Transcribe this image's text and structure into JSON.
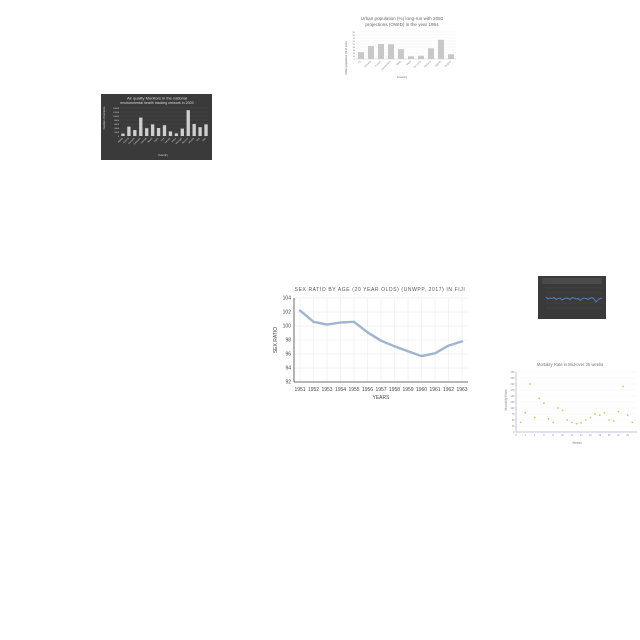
{
  "chart_data": [
    {
      "id": "urban",
      "type": "bar",
      "title_lines": [
        "Urban population (%) long-run with 2050",
        "projections (OWID) in the year 1954"
      ],
      "xlabel": "Country",
      "ylabel": "Urban population (% of total)",
      "categories": [
        "Fiji",
        "Grenada",
        "Kosovo",
        "Liechtenstein",
        "Malta",
        "Nepal",
        "Sri Lanka",
        "Tanzania",
        "Uganda",
        "Uruguay"
      ],
      "values": [
        23,
        43,
        50,
        49,
        33,
        9,
        11,
        36,
        64,
        16
      ],
      "ylim": [
        0,
        90
      ],
      "yticks": [
        0,
        10,
        20,
        30,
        40,
        50,
        60,
        70,
        80,
        90
      ],
      "colors": {
        "bar": "#c8c8c8",
        "text": "#666666"
      }
    },
    {
      "id": "air",
      "type": "bar",
      "title_lines": [
        "Air quality Monitors in the national",
        "environmental health tracking network in 2003"
      ],
      "xlabel": "Country",
      "ylabel": "Number of monitors",
      "categories": [
        "Alaska",
        "Arizona",
        "Colorado",
        "Delaware",
        "Georgia",
        "Hawaii",
        "Idaho",
        "Iowa",
        "Kansas",
        "Maine",
        "Michigan",
        "Missouri",
        "Nevada",
        "Ohio",
        "Utah"
      ],
      "values": [
        1200,
        4700,
        3000,
        9200,
        3900,
        5800,
        4000,
        5400,
        2300,
        1300,
        3700,
        12900,
        6000,
        4400,
        5800
      ],
      "ylim": [
        0,
        14000
      ],
      "yticks": [
        0,
        2000,
        4000,
        6000,
        8000,
        10000,
        12000,
        14000
      ],
      "colors": {
        "bg": "#3a3a3a",
        "bar": "#cfcfcf",
        "text": "#dddddd"
      }
    },
    {
      "id": "sex",
      "type": "line",
      "title": "SEX RATIO BY AGE (20 YEAR OLDS) (UNWPP, 2017) IN FIJI",
      "xlabel": "YEARS",
      "ylabel": "SEX RATIO",
      "x": [
        1951,
        1952,
        1953,
        1954,
        1955,
        1956,
        1957,
        1958,
        1959,
        1960,
        1961,
        1962,
        1963
      ],
      "xticks": [
        "1951",
        "1952",
        "1953",
        "1954",
        "1955",
        "1956",
        "1957",
        "1958",
        "1959",
        "1960",
        "1961",
        "1962",
        "1963"
      ],
      "y": [
        102.2,
        100.6,
        100.2,
        100.5,
        100.6,
        99.1,
        97.9,
        97.1,
        96.4,
        95.7,
        96.1,
        97.2,
        97.8
      ],
      "ylim": [
        92,
        104
      ],
      "yticks": [
        "92",
        "94",
        "96",
        "98",
        "100",
        "102",
        "104"
      ],
      "colors": {
        "line": "#9fb4ce",
        "grid": "#e8e8e8",
        "text": "#444444"
      }
    },
    {
      "id": "mini",
      "type": "line",
      "colors": {
        "bg": "#3a3a3a",
        "line": "#4f7fbf"
      },
      "y": [
        5.2,
        4.8,
        5.0,
        4.9,
        5.1,
        4.7,
        4.9,
        5.0,
        4.6,
        4.8,
        5.0,
        4.9,
        4.7,
        5.1,
        5.0,
        4.8,
        4.9,
        4.5,
        4.8,
        5.0,
        4.9,
        4.7,
        4.9,
        5.1,
        4.8,
        4.2,
        4.6,
        4.9,
        5.0
      ]
    },
    {
      "id": "mort",
      "type": "scatter",
      "title": "Mortality Rate in Mid-over 25 weeks",
      "xlabel": "Weeks",
      "ylabel": "Mortality Rate",
      "x": [
        1,
        2,
        3,
        4,
        5,
        6,
        7,
        8,
        9,
        10,
        11,
        12,
        13,
        14,
        15,
        16,
        17,
        18,
        19,
        20,
        21,
        22,
        23,
        24,
        25
      ],
      "y": [
        40,
        80,
        200,
        60,
        140,
        120,
        55,
        40,
        100,
        90,
        50,
        40,
        35,
        38,
        50,
        60,
        75,
        70,
        80,
        50,
        45,
        85,
        190,
        70,
        40
      ],
      "xticks": [
        "0",
        "2",
        "4",
        "6",
        "8",
        "10",
        "12",
        "14",
        "16",
        "18",
        "20",
        "22",
        "24"
      ],
      "ylim": [
        0,
        250
      ],
      "yticks": [
        "0",
        "25",
        "50",
        "75",
        "100",
        "125",
        "150",
        "175",
        "200",
        "225",
        "250"
      ],
      "colors": {
        "point": "#b8d06a",
        "axis": "#9a7fc7",
        "text": "#888888"
      }
    }
  ]
}
